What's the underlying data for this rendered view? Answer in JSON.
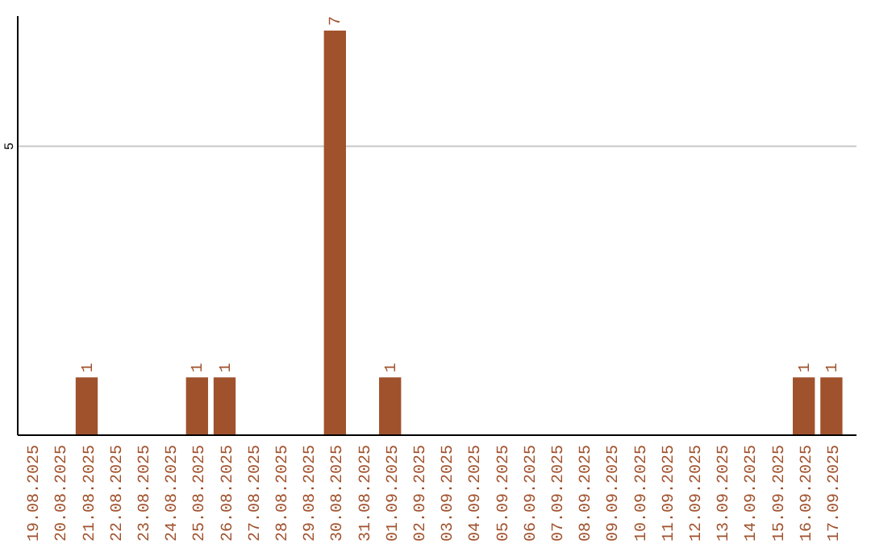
{
  "chart_data": {
    "type": "bar",
    "categories": [
      "19.08.2025",
      "20.08.2025",
      "21.08.2025",
      "22.08.2025",
      "23.08.2025",
      "24.08.2025",
      "25.08.2025",
      "26.08.2025",
      "27.08.2025",
      "28.08.2025",
      "29.08.2025",
      "30.08.2025",
      "31.08.2025",
      "01.09.2025",
      "02.09.2025",
      "03.09.2025",
      "04.09.2025",
      "05.09.2025",
      "06.09.2025",
      "07.09.2025",
      "08.09.2025",
      "09.09.2025",
      "10.09.2025",
      "11.09.2025",
      "12.09.2025",
      "13.09.2025",
      "14.09.2025",
      "15.09.2025",
      "16.09.2025",
      "17.09.2025"
    ],
    "values": [
      null,
      null,
      1,
      null,
      null,
      null,
      1,
      1,
      null,
      null,
      null,
      7,
      null,
      1,
      null,
      null,
      null,
      null,
      null,
      null,
      null,
      null,
      null,
      null,
      null,
      null,
      null,
      null,
      1,
      1
    ],
    "color": "#a0522d",
    "ylim": [
      0,
      7.25
    ],
    "yticks": [
      5
    ],
    "grid": "y",
    "data_labels": true
  }
}
